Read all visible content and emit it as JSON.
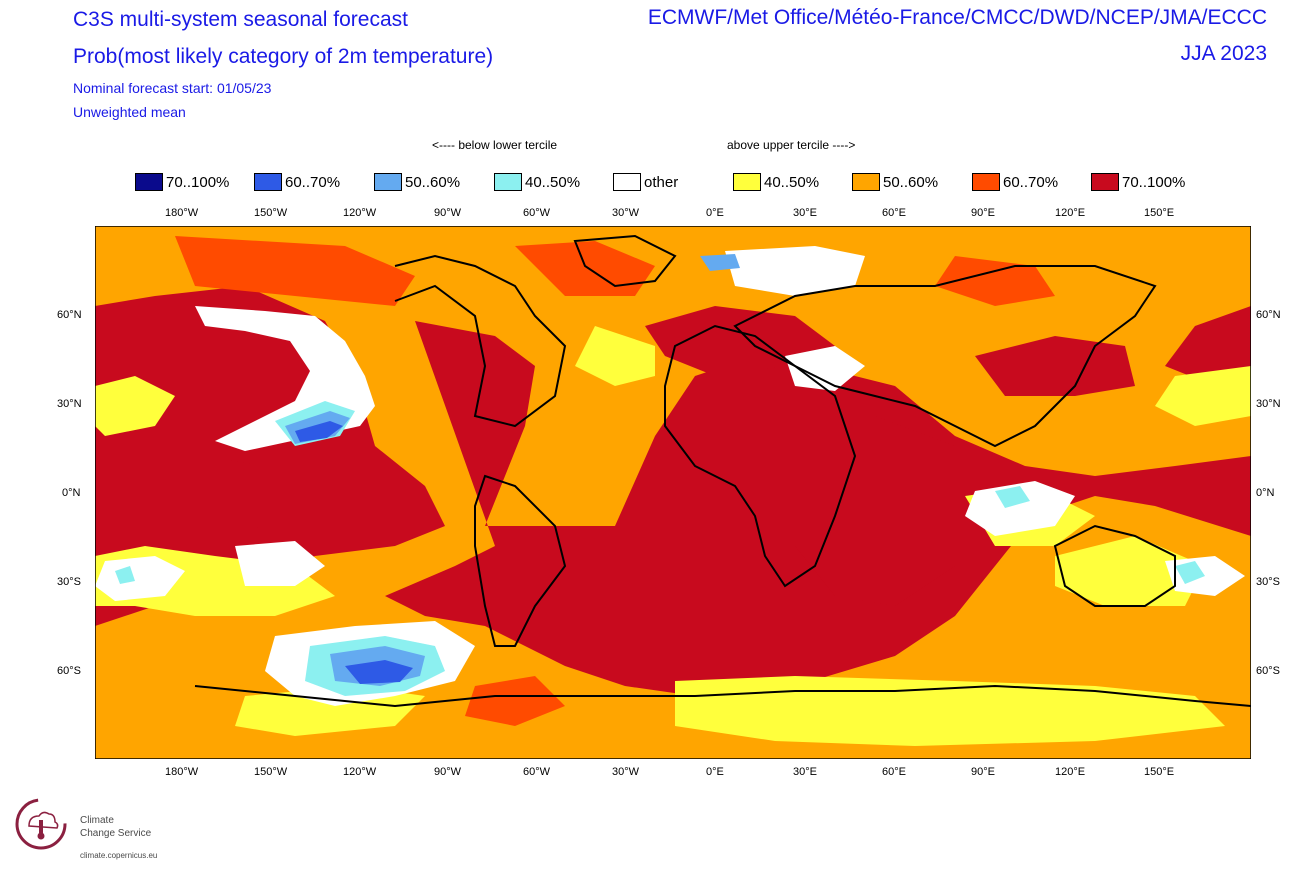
{
  "header": {
    "title": "C3S multi-system seasonal forecast",
    "subtitle": "Prob(most likely category of 2m temperature)",
    "start": "Nominal forecast start: 01/05/23",
    "mean": "Unweighted mean",
    "centres": "ECMWF/Met Office/Météo-France/CMCC/DWD/NCEP/JMA/ECCC",
    "season": "JJA 2023"
  },
  "legend": {
    "below_label": "<---- below lower tercile",
    "above_label": "above upper tercile ---->",
    "items": [
      {
        "label": "70..100%",
        "color": "#0a0a8c"
      },
      {
        "label": "60..70%",
        "color": "#2e5ae6"
      },
      {
        "label": "50..60%",
        "color": "#64aaf0"
      },
      {
        "label": "40..50%",
        "color": "#8cf0f0"
      },
      {
        "label": "other",
        "color": "#ffffff"
      },
      {
        "label": "40..50%",
        "color": "#ffff3c"
      },
      {
        "label": "50..60%",
        "color": "#ffa500"
      },
      {
        "label": "60..70%",
        "color": "#ff4b00"
      },
      {
        "label": "70..100%",
        "color": "#c80a1e"
      }
    ]
  },
  "axes": {
    "lon_labels": [
      "180°W",
      "150°W",
      "120°W",
      "90°W",
      "60°W",
      "30°W",
      "0°E",
      "30°E",
      "60°E",
      "90°E",
      "120°E",
      "150°E"
    ],
    "lat_labels": [
      "60°N",
      "30°N",
      "0°N",
      "30°S",
      "60°S"
    ]
  },
  "footer": {
    "logo_line1": "Climate",
    "logo_line2": "Change Service",
    "logo_url": "climate.copernicus.eu"
  }
}
